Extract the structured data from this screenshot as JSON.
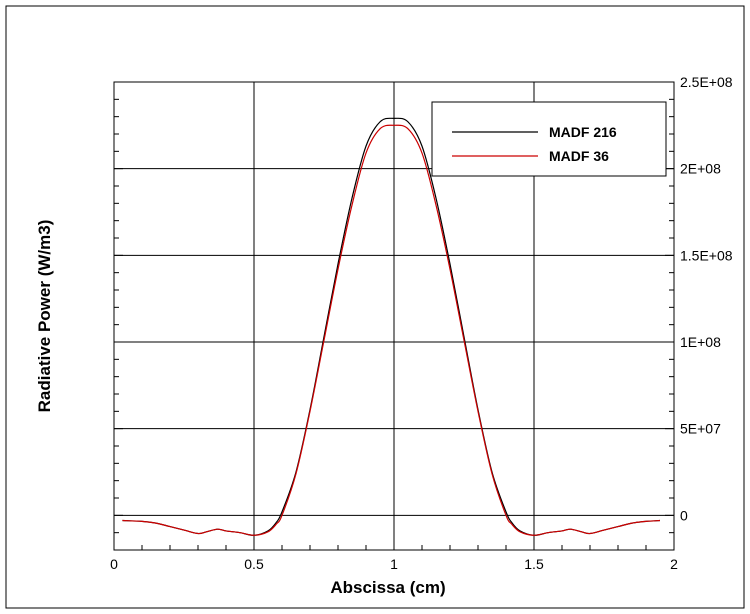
{
  "chart_data": {
    "type": "line",
    "xlabel": "Abscissa (cm)",
    "ylabel": "Radiative Power (W/m3)",
    "xlim": [
      0,
      2
    ],
    "ylim": [
      -20000000,
      250000000
    ],
    "y_axis_side": "right",
    "grid": true,
    "legend_position": "top-right",
    "x_ticks": [
      {
        "value": 0,
        "label": "0"
      },
      {
        "value": 0.5,
        "label": "0.5"
      },
      {
        "value": 1,
        "label": "1"
      },
      {
        "value": 1.5,
        "label": "1.5"
      },
      {
        "value": 2,
        "label": "2"
      }
    ],
    "y_ticks": [
      {
        "value": 0,
        "label": "0"
      },
      {
        "value": 50000000,
        "label": "5E+07"
      },
      {
        "value": 100000000,
        "label": "1E+08"
      },
      {
        "value": 150000000,
        "label": "1.5E+08"
      },
      {
        "value": 200000000,
        "label": "2E+08"
      },
      {
        "value": 250000000,
        "label": "2.5E+08"
      }
    ],
    "series": [
      {
        "name": "MADF 216",
        "color": "#000000",
        "x": [
          0.03,
          0.1,
          0.15,
          0.2,
          0.25,
          0.3,
          0.33,
          0.37,
          0.4,
          0.45,
          0.5,
          0.55,
          0.58,
          0.6,
          0.65,
          0.7,
          0.75,
          0.8,
          0.85,
          0.9,
          0.95,
          1.0,
          1.05,
          1.1,
          1.15,
          1.2,
          1.25,
          1.3,
          1.35,
          1.4,
          1.42,
          1.45,
          1.5,
          1.55,
          1.6,
          1.63,
          1.67,
          1.7,
          1.75,
          1.8,
          1.85,
          1.9,
          1.95
        ],
        "y": [
          -3000000,
          -3500000,
          -4500000,
          -6500000,
          -8500000,
          -10500000,
          -9500000,
          -8000000,
          -9000000,
          -10000000,
          -11500000,
          -9000000,
          -4000000,
          2000000,
          25000000,
          61000000,
          103000000,
          145000000,
          183000000,
          213000000,
          227000000,
          229000000,
          227000000,
          213000000,
          183000000,
          145000000,
          103000000,
          61000000,
          25000000,
          2000000,
          -4000000,
          -9000000,
          -11500000,
          -10000000,
          -9000000,
          -8000000,
          -9500000,
          -10500000,
          -8500000,
          -6500000,
          -4500000,
          -3500000,
          -3000000
        ]
      },
      {
        "name": "MADF 36",
        "color": "#cc0000",
        "x": [
          0.03,
          0.1,
          0.15,
          0.2,
          0.25,
          0.3,
          0.33,
          0.37,
          0.4,
          0.45,
          0.5,
          0.55,
          0.58,
          0.6,
          0.65,
          0.7,
          0.75,
          0.8,
          0.85,
          0.9,
          0.95,
          1.0,
          1.05,
          1.1,
          1.15,
          1.2,
          1.25,
          1.3,
          1.35,
          1.4,
          1.42,
          1.45,
          1.5,
          1.55,
          1.6,
          1.63,
          1.67,
          1.7,
          1.75,
          1.8,
          1.85,
          1.9,
          1.95
        ],
        "y": [
          -3000000,
          -3500000,
          -4500000,
          -6500000,
          -8500000,
          -10500000,
          -9500000,
          -8000000,
          -9000000,
          -10000000,
          -11500000,
          -9500000,
          -5000000,
          0,
          24000000,
          60000000,
          101000000,
          142000000,
          179000000,
          209000000,
          223000000,
          225000000,
          223000000,
          209000000,
          179000000,
          142000000,
          101000000,
          60000000,
          24000000,
          0,
          -5000000,
          -9500000,
          -11500000,
          -10000000,
          -9000000,
          -8000000,
          -9500000,
          -10500000,
          -8500000,
          -6500000,
          -4500000,
          -3500000,
          -3000000
        ]
      }
    ]
  }
}
